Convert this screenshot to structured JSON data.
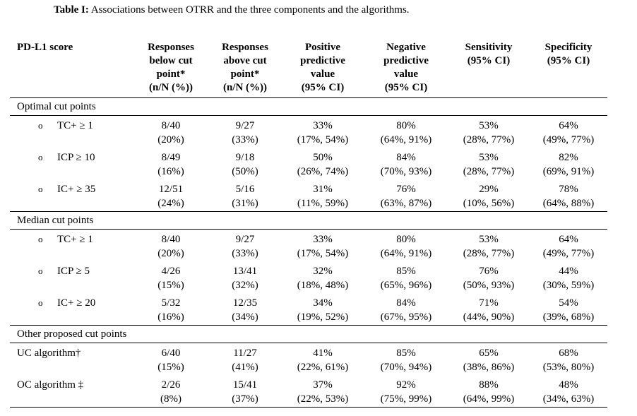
{
  "caption": {
    "prefix": "Table I:",
    "text": " Associations between OTRR and the three components and the algorithms."
  },
  "headers": [
    {
      "lines": [
        "PD-L1 score"
      ]
    },
    {
      "lines": [
        "Responses",
        "below cut",
        "point*",
        "(n/N (%))"
      ]
    },
    {
      "lines": [
        "Responses",
        "above cut",
        "point*",
        "(n/N (%))"
      ]
    },
    {
      "lines": [
        "Positive",
        "predictive",
        "value",
        "(95% CI)"
      ]
    },
    {
      "lines": [
        "Negative",
        "predictive",
        "value",
        "(95% CI)"
      ]
    },
    {
      "lines": [
        "Sensitivity",
        "(95% CI)"
      ]
    },
    {
      "lines": [
        "Specificity",
        "(95% CI)"
      ]
    }
  ],
  "bullet_glyph": "o",
  "sections": [
    {
      "title": "Optimal cut points",
      "rows": [
        {
          "label": "TC+ ≥ 1",
          "bullet": true,
          "cells": [
            [
              "8/40",
              "(20%)"
            ],
            [
              "9/27",
              "(33%)"
            ],
            [
              "33%",
              "(17%, 54%)"
            ],
            [
              "80%",
              "(64%, 91%)"
            ],
            [
              "53%",
              "(28%, 77%)"
            ],
            [
              "64%",
              "(49%, 77%)"
            ]
          ]
        },
        {
          "label": "ICP ≥ 10",
          "bullet": true,
          "cells": [
            [
              "8/49",
              "(16%)"
            ],
            [
              "9/18",
              "(50%)"
            ],
            [
              "50%",
              "(26%, 74%)"
            ],
            [
              "84%",
              "(70%, 93%)"
            ],
            [
              "53%",
              "(28%, 77%)"
            ],
            [
              "82%",
              "(69%, 91%)"
            ]
          ]
        },
        {
          "label": "IC+ ≥ 35",
          "bullet": true,
          "cells": [
            [
              "12/51",
              "(24%)"
            ],
            [
              "5/16",
              "(31%)"
            ],
            [
              "31%",
              "(11%, 59%)"
            ],
            [
              "76%",
              "(63%, 87%)"
            ],
            [
              "29%",
              "(10%, 56%)"
            ],
            [
              "78%",
              "(64%, 88%)"
            ]
          ]
        }
      ]
    },
    {
      "title": "Median cut points",
      "rows": [
        {
          "label": "TC+ ≥ 1",
          "bullet": true,
          "cells": [
            [
              "8/40",
              "(20%)"
            ],
            [
              "9/27",
              "(33%)"
            ],
            [
              "33%",
              "(17%, 54%)"
            ],
            [
              "80%",
              "(64%, 91%)"
            ],
            [
              "53%",
              "(28%, 77%)"
            ],
            [
              "64%",
              "(49%, 77%)"
            ]
          ]
        },
        {
          "label": "ICP ≥ 5",
          "bullet": true,
          "cells": [
            [
              "4/26",
              "(15%)"
            ],
            [
              "13/41",
              "(32%)"
            ],
            [
              "32%",
              "(18%, 48%)"
            ],
            [
              "85%",
              "(65%, 96%)"
            ],
            [
              "76%",
              "(50%, 93%)"
            ],
            [
              "44%",
              "(30%, 59%)"
            ]
          ]
        },
        {
          "label": "IC+ ≥ 20",
          "bullet": true,
          "cells": [
            [
              "5/32",
              "(16%)"
            ],
            [
              "12/35",
              "(34%)"
            ],
            [
              "34%",
              "(19%, 52%)"
            ],
            [
              "84%",
              "(67%, 95%)"
            ],
            [
              "71%",
              "(44%, 90%)"
            ],
            [
              "54%",
              "(39%, 68%)"
            ]
          ]
        }
      ]
    },
    {
      "title": "Other proposed cut points",
      "rows": [
        {
          "label": "UC algorithm†",
          "bullet": false,
          "cells": [
            [
              "6/40",
              "(15%)"
            ],
            [
              "11/27",
              "(41%)"
            ],
            [
              "41%",
              "(22%, 61%)"
            ],
            [
              "85%",
              "(70%, 94%)"
            ],
            [
              "65%",
              "(38%, 86%)"
            ],
            [
              "68%",
              "(53%, 80%)"
            ]
          ]
        },
        {
          "label": "OC algorithm ‡",
          "bullet": false,
          "cells": [
            [
              "2/26",
              "(8%)"
            ],
            [
              "15/41",
              "(37%)"
            ],
            [
              "37%",
              "(22%, 53%)"
            ],
            [
              "92%",
              "(75%, 99%)"
            ],
            [
              "88%",
              "(64%, 99%)"
            ],
            [
              "48%",
              "(34%, 63%)"
            ]
          ]
        }
      ]
    }
  ]
}
